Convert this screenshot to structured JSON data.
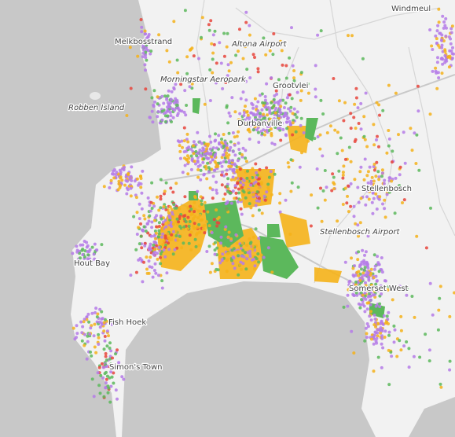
{
  "places": [
    {
      "label": "Windmeul"
    },
    {
      "label": "Melkbosstrand"
    },
    {
      "label": "Altona Airport"
    },
    {
      "label": "Morningstar Aeropark"
    },
    {
      "label": "Grootvlei"
    },
    {
      "label": "Robben Island"
    },
    {
      "label": "Durbanville"
    },
    {
      "label": "Stellenbosch"
    },
    {
      "label": "Stellenbosch Airport"
    },
    {
      "label": "Somerset West"
    },
    {
      "label": "Fish Hoek"
    },
    {
      "label": "Simon's Town"
    },
    {
      "label": "Hout Bay"
    }
  ]
}
